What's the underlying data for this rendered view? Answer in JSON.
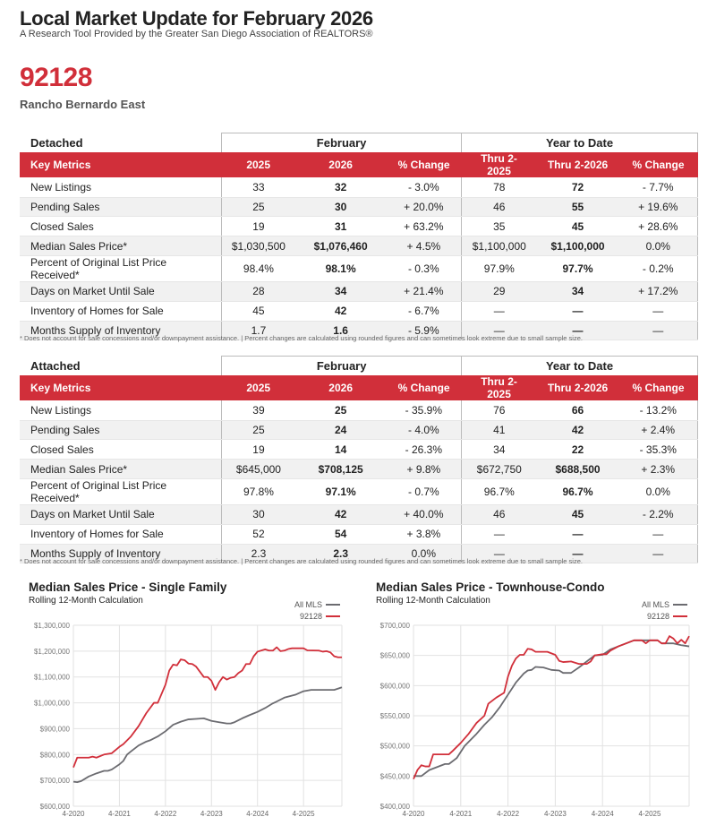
{
  "header": {
    "title": "Local Market Update for February 2026",
    "subtitle": "A Research Tool Provided by the Greater San Diego Association of REALTORS®",
    "zip": "92128",
    "area": "Rancho Bernardo East"
  },
  "columns": {
    "key_metrics": "Key Metrics",
    "group_month": "February",
    "group_ytd": "Year to Date",
    "y1": "2025",
    "y2": "2026",
    "pct": "% Change",
    "ytd1": "Thru 2-2025",
    "ytd2": "Thru 2-2026",
    "pct2": "% Change"
  },
  "tables": [
    {
      "section": "Detached",
      "rows": [
        [
          "New Listings",
          "33",
          "32",
          "- 3.0%",
          "78",
          "72",
          "- 7.7%"
        ],
        [
          "Pending Sales",
          "25",
          "30",
          "+ 20.0%",
          "46",
          "55",
          "+ 19.6%"
        ],
        [
          "Closed Sales",
          "19",
          "31",
          "+ 63.2%",
          "35",
          "45",
          "+ 28.6%"
        ],
        [
          "Median Sales Price*",
          "$1,030,500",
          "$1,076,460",
          "+ 4.5%",
          "$1,100,000",
          "$1,100,000",
          "0.0%"
        ],
        [
          "Percent of Original List Price Received*",
          "98.4%",
          "98.1%",
          "- 0.3%",
          "97.9%",
          "97.7%",
          "- 0.2%"
        ],
        [
          "Days on Market Until Sale",
          "28",
          "34",
          "+ 21.4%",
          "29",
          "34",
          "+ 17.2%"
        ],
        [
          "Inventory of Homes for Sale",
          "45",
          "42",
          "- 6.7%",
          "—",
          "—",
          "—"
        ],
        [
          "Months Supply of Inventory",
          "1.7",
          "1.6",
          "- 5.9%",
          "—",
          "—",
          "—"
        ]
      ]
    },
    {
      "section": "Attached",
      "rows": [
        [
          "New Listings",
          "39",
          "25",
          "- 35.9%",
          "76",
          "66",
          "- 13.2%"
        ],
        [
          "Pending Sales",
          "25",
          "24",
          "- 4.0%",
          "41",
          "42",
          "+ 2.4%"
        ],
        [
          "Closed Sales",
          "19",
          "14",
          "- 26.3%",
          "34",
          "22",
          "- 35.3%"
        ],
        [
          "Median Sales Price*",
          "$645,000",
          "$708,125",
          "+ 9.8%",
          "$672,750",
          "$688,500",
          "+ 2.3%"
        ],
        [
          "Percent of Original List Price Received*",
          "97.8%",
          "97.1%",
          "- 0.7%",
          "96.7%",
          "96.7%",
          "0.0%"
        ],
        [
          "Days on Market Until Sale",
          "30",
          "42",
          "+ 40.0%",
          "46",
          "45",
          "- 2.2%"
        ],
        [
          "Inventory of Homes for Sale",
          "52",
          "54",
          "+ 3.8%",
          "—",
          "—",
          "—"
        ],
        [
          "Months Supply of Inventory",
          "2.3",
          "2.3",
          "0.0%",
          "—",
          "—",
          "—"
        ]
      ]
    }
  ],
  "footnote": "* Does not account for sale concessions and/or downpayment assistance. | Percent changes are calculated using rounded figures and can sometimes look extreme due to small sample size.",
  "colors": {
    "red": "#d12f3a",
    "gray": "#6b6b70"
  },
  "chart_data": [
    {
      "type": "line",
      "title": "Median Sales Price - Single Family",
      "subtitle": "Rolling 12-Month Calculation",
      "x_unit": "months since 4-2020",
      "xticks": [
        0,
        12,
        24,
        36,
        48,
        60
      ],
      "xtick_labels": [
        "4-2020",
        "4-2021",
        "4-2022",
        "4-2023",
        "4-2024",
        "4-2025"
      ],
      "xlim": [
        0,
        70
      ],
      "ylim": [
        600000,
        1300000
      ],
      "yticks": [
        600000,
        700000,
        800000,
        900000,
        1000000,
        1100000,
        1200000,
        1300000
      ],
      "ytick_labels": [
        "$600,000",
        "$700,000",
        "$800,000",
        "$900,000",
        "$1,000,000",
        "$1,100,000",
        "$1,200,000",
        "$1,300,000"
      ],
      "legend": "top-right",
      "grid": true,
      "series": [
        {
          "name": "All MLS",
          "color": "#6b6b70",
          "points": [
            [
              0,
              695000
            ],
            [
              1,
              693000
            ],
            [
              2,
              697000
            ],
            [
              4,
              715000
            ],
            [
              6,
              727000
            ],
            [
              8,
              737000
            ],
            [
              9,
              737000
            ],
            [
              10,
              742000
            ],
            [
              12,
              762000
            ],
            [
              13,
              775000
            ],
            [
              14,
              800000
            ],
            [
              15,
              812000
            ],
            [
              17,
              835000
            ],
            [
              19,
              850000
            ],
            [
              20,
              855000
            ],
            [
              22,
              870000
            ],
            [
              24,
              890000
            ],
            [
              26,
              915000
            ],
            [
              28,
              927000
            ],
            [
              30,
              936000
            ],
            [
              32,
              938000
            ],
            [
              34,
              940000
            ],
            [
              36,
              930000
            ],
            [
              38,
              925000
            ],
            [
              40,
              920000
            ],
            [
              41,
              920000
            ],
            [
              42,
              925000
            ],
            [
              44,
              940000
            ],
            [
              46,
              953000
            ],
            [
              48,
              965000
            ],
            [
              50,
              980000
            ],
            [
              52,
              998000
            ],
            [
              53,
              1005000
            ],
            [
              55,
              1020000
            ],
            [
              57,
              1028000
            ],
            [
              58,
              1032000
            ],
            [
              60,
              1045000
            ],
            [
              62,
              1050000
            ],
            [
              68,
              1050000
            ],
            [
              70,
              1060000
            ]
          ]
        },
        {
          "name": "92128",
          "color": "#d12f3a",
          "points": [
            [
              0,
              750000
            ],
            [
              1,
              788000
            ],
            [
              4,
              788000
            ],
            [
              5,
              792000
            ],
            [
              6,
              788000
            ],
            [
              8,
              800000
            ],
            [
              10,
              805000
            ],
            [
              12,
              830000
            ],
            [
              13,
              840000
            ],
            [
              15,
              870000
            ],
            [
              17,
              910000
            ],
            [
              19,
              960000
            ],
            [
              21,
              1000000
            ],
            [
              22,
              1000000
            ],
            [
              24,
              1070000
            ],
            [
              25,
              1125000
            ],
            [
              26,
              1148000
            ],
            [
              27,
              1145000
            ],
            [
              28,
              1168000
            ],
            [
              29,
              1165000
            ],
            [
              30,
              1152000
            ],
            [
              31,
              1150000
            ],
            [
              32,
              1140000
            ],
            [
              34,
              1100000
            ],
            [
              35,
              1100000
            ],
            [
              36,
              1085000
            ],
            [
              37,
              1050000
            ],
            [
              38,
              1080000
            ],
            [
              39,
              1100000
            ],
            [
              40,
              1090000
            ],
            [
              41,
              1097000
            ],
            [
              42,
              1100000
            ],
            [
              43,
              1115000
            ],
            [
              44,
              1125000
            ],
            [
              45,
              1150000
            ],
            [
              46,
              1150000
            ],
            [
              47,
              1180000
            ],
            [
              48,
              1198000
            ],
            [
              50,
              1207000
            ],
            [
              51,
              1202000
            ],
            [
              52,
              1202000
            ],
            [
              53,
              1215000
            ],
            [
              54,
              1200000
            ],
            [
              55,
              1202000
            ],
            [
              56,
              1208000
            ],
            [
              57,
              1211000
            ],
            [
              60,
              1211000
            ],
            [
              61,
              1203000
            ],
            [
              64,
              1202000
            ],
            [
              65,
              1198000
            ],
            [
              66,
              1200000
            ],
            [
              67,
              1195000
            ],
            [
              68,
              1180000
            ],
            [
              69,
              1176000
            ],
            [
              70,
              1176000
            ]
          ]
        }
      ]
    },
    {
      "type": "line",
      "title": "Median Sales Price - Townhouse-Condo",
      "subtitle": "Rolling 12-Month Calculation",
      "x_unit": "months since 4-2020",
      "xticks": [
        0,
        12,
        24,
        36,
        48,
        60
      ],
      "xtick_labels": [
        "4-2020",
        "4-2021",
        "4-2022",
        "4-2023",
        "4-2024",
        "4-2025"
      ],
      "xlim": [
        0,
        70
      ],
      "ylim": [
        400000,
        700000
      ],
      "yticks": [
        400000,
        450000,
        500000,
        550000,
        600000,
        650000,
        700000
      ],
      "ytick_labels": [
        "$400,000",
        "$450,000",
        "$500,000",
        "$550,000",
        "$600,000",
        "$650,000",
        "$700,000"
      ],
      "legend": "top-right",
      "grid": true,
      "series": [
        {
          "name": "All MLS",
          "color": "#6b6b70",
          "points": [
            [
              0,
              450000
            ],
            [
              2,
              450000
            ],
            [
              4,
              460000
            ],
            [
              6,
              465000
            ],
            [
              8,
              470000
            ],
            [
              9,
              470000
            ],
            [
              11,
              480000
            ],
            [
              13,
              500000
            ],
            [
              16,
              520000
            ],
            [
              18,
              535000
            ],
            [
              20,
              548000
            ],
            [
              22,
              565000
            ],
            [
              24,
              585000
            ],
            [
              26,
              605000
            ],
            [
              28,
              620000
            ],
            [
              29,
              625000
            ],
            [
              30,
              626000
            ],
            [
              31,
              631000
            ],
            [
              33,
              630000
            ],
            [
              35,
              626000
            ],
            [
              37,
              625000
            ],
            [
              38,
              621000
            ],
            [
              40,
              621000
            ],
            [
              42,
              630000
            ],
            [
              44,
              640000
            ],
            [
              46,
              650000
            ],
            [
              48,
              651000
            ],
            [
              50,
              660000
            ],
            [
              52,
              665000
            ],
            [
              54,
              670000
            ],
            [
              56,
              675000
            ],
            [
              58,
              675000
            ],
            [
              60,
              675000
            ],
            [
              62,
              675000
            ],
            [
              63,
              670000
            ],
            [
              66,
              670000
            ],
            [
              68,
              667000
            ],
            [
              70,
              665000
            ]
          ]
        },
        {
          "name": "92128",
          "color": "#d12f3a",
          "points": [
            [
              0,
              445000
            ],
            [
              1,
              460000
            ],
            [
              2,
              468000
            ],
            [
              3,
              466000
            ],
            [
              4,
              466000
            ],
            [
              5,
              486000
            ],
            [
              9,
              486000
            ],
            [
              10,
              492000
            ],
            [
              12,
              505000
            ],
            [
              14,
              520000
            ],
            [
              16,
              538000
            ],
            [
              18,
              550000
            ],
            [
              19,
              570000
            ],
            [
              21,
              580000
            ],
            [
              23,
              588000
            ],
            [
              24,
              615000
            ],
            [
              25,
              633000
            ],
            [
              26,
              645000
            ],
            [
              27,
              651000
            ],
            [
              28,
              651000
            ],
            [
              29,
              661000
            ],
            [
              30,
              660000
            ],
            [
              31,
              656000
            ],
            [
              34,
              656000
            ],
            [
              36,
              651000
            ],
            [
              37,
              641000
            ],
            [
              38,
              639000
            ],
            [
              40,
              640000
            ],
            [
              41,
              638000
            ],
            [
              42,
              636000
            ],
            [
              44,
              636000
            ],
            [
              45,
              640000
            ],
            [
              46,
              650000
            ],
            [
              48,
              652000
            ],
            [
              49,
              652000
            ],
            [
              50,
              658000
            ],
            [
              52,
              665000
            ],
            [
              54,
              670000
            ],
            [
              56,
              675000
            ],
            [
              58,
              675000
            ],
            [
              59,
              670000
            ],
            [
              60,
              675000
            ],
            [
              62,
              675000
            ],
            [
              63,
              670000
            ],
            [
              64,
              670000
            ],
            [
              65,
              682000
            ],
            [
              66,
              678000
            ],
            [
              67,
              670000
            ],
            [
              68,
              676000
            ],
            [
              69,
              670000
            ],
            [
              70,
              682000
            ]
          ]
        }
      ]
    }
  ]
}
